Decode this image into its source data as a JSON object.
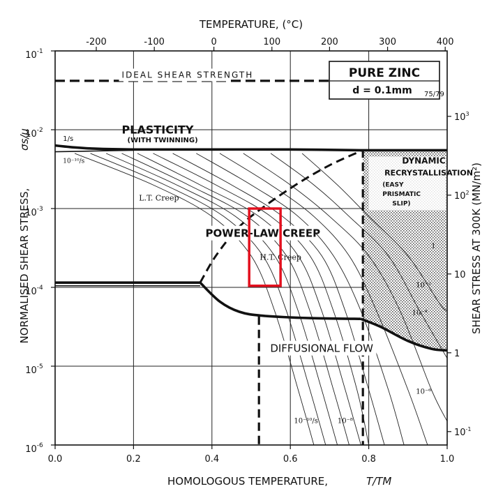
{
  "chart_data": {
    "type": "line",
    "title": "PURE ZINC",
    "subtitle": "d = 0.1mm",
    "subtitle_ref": "75/79",
    "xlabel": "HOMOLOGOUS TEMPERATURE,",
    "xlabel_symbol": "T/TM",
    "ylabel": "NORMALISED SHEAR STRESS,",
    "ylabel_symbol": "σs/μ",
    "top_axis_label": "TEMPERATURE, (°C)",
    "right_axis_label": "SHEAR STRESS AT 300K (MN/m²)",
    "xlim": [
      0,
      1
    ],
    "ylim_log10": [
      -6,
      -1
    ],
    "grid": true,
    "x_ticks": [
      {
        "value": 0,
        "label": "0.0"
      },
      {
        "value": 0.2,
        "label": "0.2"
      },
      {
        "value": 0.4,
        "label": "0.4"
      },
      {
        "value": 0.6,
        "label": "0.6"
      },
      {
        "value": 0.8,
        "label": "0.8"
      },
      {
        "value": 1.0,
        "label": "1.0"
      }
    ],
    "y_ticks": [
      {
        "value": -1,
        "base": "10",
        "exp": "-1"
      },
      {
        "value": -2,
        "base": "10",
        "exp": "-2"
      },
      {
        "value": -3,
        "base": "10",
        "exp": "-3"
      },
      {
        "value": -4,
        "base": "10",
        "exp": "-4"
      },
      {
        "value": -5,
        "base": "10",
        "exp": "-5"
      },
      {
        "value": -6,
        "base": "10",
        "exp": "-6"
      }
    ],
    "top_ticks": [
      {
        "value": 0.105,
        "label": "-200"
      },
      {
        "value": 0.253,
        "label": "-100"
      },
      {
        "value": 0.405,
        "label": "0"
      },
      {
        "value": 0.553,
        "label": "100"
      },
      {
        "value": 0.7,
        "label": "200"
      },
      {
        "value": 0.848,
        "label": "300"
      },
      {
        "value": 0.995,
        "label": "400"
      }
    ],
    "right_ticks": [
      {
        "value": -1.83,
        "label": "10³",
        "base": "10",
        "exp": "3"
      },
      {
        "value": -2.83,
        "label": "10²",
        "base": "10",
        "exp": "2"
      },
      {
        "value": -3.83,
        "label": "10",
        "base": "10",
        "exp": ""
      },
      {
        "value": -4.83,
        "label": "1",
        "base": "1",
        "exp": ""
      },
      {
        "value": -5.83,
        "label": "10⁻¹",
        "base": "10",
        "exp": "-1"
      }
    ],
    "boundaries": [
      {
        "name": "ideal-shear-strength",
        "style": "dashed",
        "points": [
          [
            0,
            -1.38
          ],
          [
            0.7,
            -1.38
          ]
        ]
      },
      {
        "name": "plasticity-boundary",
        "style": "solid",
        "points": [
          [
            0,
            -2.2
          ],
          [
            0.04,
            -2.22
          ],
          [
            0.1,
            -2.24
          ],
          [
            0.2,
            -2.25
          ],
          [
            0.4,
            -2.25
          ],
          [
            0.6,
            -2.25
          ],
          [
            0.78,
            -2.26
          ],
          [
            1.0,
            -2.26
          ]
        ]
      },
      {
        "name": "plasticity-boundary-lower",
        "style": "solid",
        "points": [
          [
            0,
            -2.28
          ],
          [
            0.1,
            -2.27
          ],
          [
            0.2,
            -2.26
          ]
        ]
      },
      {
        "name": "lt-ht-creep-boundary",
        "style": "solid",
        "points": [
          [
            0,
            -3.94
          ],
          [
            0.37,
            -3.94
          ]
        ]
      },
      {
        "name": "lt-ht-creep-boundary-lower",
        "style": "solid",
        "points": [
          [
            0,
            -3.98
          ],
          [
            0.37,
            -3.98
          ]
        ]
      },
      {
        "name": "powerlaw-diffusional-boundary",
        "style": "solid",
        "points": [
          [
            0.37,
            -3.94
          ],
          [
            0.42,
            -4.18
          ],
          [
            0.47,
            -4.31
          ],
          [
            0.53,
            -4.36
          ],
          [
            0.65,
            -4.39
          ],
          [
            0.78,
            -4.4
          ]
        ]
      },
      {
        "name": "recrystallisation-powerlaw-lower",
        "style": "solid",
        "points": [
          [
            0.78,
            -4.4
          ],
          [
            0.83,
            -4.5
          ],
          [
            0.9,
            -4.68
          ],
          [
            0.96,
            -4.78
          ],
          [
            1.0,
            -4.8
          ]
        ]
      },
      {
        "name": "lt-creep-ht-creep-dashed",
        "style": "dashed",
        "points": [
          [
            0.37,
            -3.94
          ],
          [
            0.41,
            -3.6
          ],
          [
            0.47,
            -3.23
          ],
          [
            0.54,
            -2.95
          ],
          [
            0.62,
            -2.68
          ],
          [
            0.7,
            -2.45
          ],
          [
            0.78,
            -2.27
          ]
        ]
      },
      {
        "name": "recrystallisation-vertical",
        "style": "dashed",
        "points": [
          [
            0.785,
            -2.25
          ],
          [
            0.785,
            -6
          ]
        ]
      },
      {
        "name": "diffusional-vertical",
        "style": "dashed",
        "points": [
          [
            0.52,
            -4.37
          ],
          [
            0.52,
            -6
          ]
        ]
      }
    ],
    "strain_rate_contours": [
      {
        "points": [
          [
            0.05,
            -2.3
          ],
          [
            0.25,
            -2.7
          ],
          [
            0.4,
            -3.1
          ],
          [
            0.5,
            -3.6
          ],
          [
            0.56,
            -4.3
          ],
          [
            0.62,
            -5.3
          ],
          [
            0.66,
            -6
          ]
        ]
      },
      {
        "points": [
          [
            0.09,
            -2.3
          ],
          [
            0.28,
            -2.7
          ],
          [
            0.43,
            -3.1
          ],
          [
            0.53,
            -3.6
          ],
          [
            0.59,
            -4.3
          ],
          [
            0.65,
            -5.3
          ],
          [
            0.69,
            -6
          ]
        ]
      },
      {
        "points": [
          [
            0.13,
            -2.3
          ],
          [
            0.31,
            -2.7
          ],
          [
            0.46,
            -3.1
          ],
          [
            0.56,
            -3.6
          ],
          [
            0.62,
            -4.3
          ],
          [
            0.68,
            -5.3
          ],
          [
            0.72,
            -6
          ]
        ]
      },
      {
        "points": [
          [
            0.17,
            -2.3
          ],
          [
            0.34,
            -2.7
          ],
          [
            0.49,
            -3.1
          ],
          [
            0.59,
            -3.6
          ],
          [
            0.65,
            -4.3
          ],
          [
            0.71,
            -5.3
          ],
          [
            0.75,
            -6
          ]
        ]
      },
      {
        "points": [
          [
            0.21,
            -2.3
          ],
          [
            0.37,
            -2.7
          ],
          [
            0.52,
            -3.1
          ],
          [
            0.62,
            -3.6
          ],
          [
            0.68,
            -4.3
          ],
          [
            0.74,
            -5.3
          ],
          [
            0.78,
            -6
          ]
        ]
      },
      {
        "points": [
          [
            0.25,
            -2.3
          ],
          [
            0.41,
            -2.7
          ],
          [
            0.55,
            -3.1
          ],
          [
            0.65,
            -3.6
          ],
          [
            0.71,
            -4.3
          ],
          [
            0.77,
            -5.3
          ],
          [
            0.8,
            -6
          ]
        ]
      },
      {
        "points": [
          [
            0.3,
            -2.3
          ],
          [
            0.45,
            -2.7
          ],
          [
            0.58,
            -3.1
          ],
          [
            0.68,
            -3.6
          ],
          [
            0.74,
            -4.3
          ],
          [
            0.8,
            -5.3
          ],
          [
            0.84,
            -6
          ]
        ]
      },
      {
        "points": [
          [
            0.36,
            -2.3
          ],
          [
            0.5,
            -2.7
          ],
          [
            0.62,
            -3.1
          ],
          [
            0.71,
            -3.6
          ],
          [
            0.78,
            -4.3
          ],
          [
            0.85,
            -5.3
          ],
          [
            0.89,
            -6
          ]
        ]
      },
      {
        "points": [
          [
            0.42,
            -2.3
          ],
          [
            0.55,
            -2.7
          ],
          [
            0.66,
            -3.1
          ],
          [
            0.75,
            -3.6
          ],
          [
            0.82,
            -4.3
          ],
          [
            0.9,
            -5.3
          ],
          [
            0.95,
            -6
          ]
        ]
      },
      {
        "points": [
          [
            0.48,
            -2.3
          ],
          [
            0.6,
            -2.7
          ],
          [
            0.7,
            -3.1
          ],
          [
            0.8,
            -3.6
          ],
          [
            0.88,
            -4.3
          ],
          [
            0.96,
            -5.3
          ],
          [
            1.0,
            -5.7
          ]
        ]
      },
      {
        "points": [
          [
            0.55,
            -2.3
          ],
          [
            0.66,
            -2.7
          ],
          [
            0.75,
            -3.1
          ],
          [
            0.85,
            -3.6
          ],
          [
            0.93,
            -4.3
          ],
          [
            1.0,
            -4.9
          ]
        ]
      },
      {
        "points": [
          [
            0.63,
            -2.3
          ],
          [
            0.72,
            -2.7
          ],
          [
            0.8,
            -3.1
          ],
          [
            0.9,
            -3.6
          ],
          [
            0.98,
            -4.2
          ],
          [
            1.0,
            -4.3
          ]
        ]
      }
    ],
    "annotations": [
      {
        "name": "ideal-shear-label",
        "text": "IDEAL SHEAR STRENGTH",
        "x": 0.17,
        "y": -1.34
      },
      {
        "name": "plasticity-label",
        "text": "PLASTICITY",
        "x": 0.17,
        "y": -2.05
      },
      {
        "name": "twinning-label",
        "text": "(WITH TWINNING)",
        "x": 0.17,
        "y": -2.16
      },
      {
        "name": "rate-one-third-label",
        "text": "1/s",
        "x": 0.02,
        "y": -2.14
      },
      {
        "name": "rate-10-10-upper-label",
        "text": "10⁻¹⁰/s",
        "x": 0.02,
        "y": -2.42
      },
      {
        "name": "dynamic-label",
        "text": "DYNAMIC",
        "x": 0.885,
        "y": -2.43
      },
      {
        "name": "recrystallisation-label",
        "text": "RECRYSTALLISATION",
        "x": 0.84,
        "y": -2.58
      },
      {
        "name": "easy-label",
        "text": "(EASY",
        "x": 0.835,
        "y": -2.72
      },
      {
        "name": "prismatic-label",
        "text": "PRISMATIC",
        "x": 0.835,
        "y": -2.84
      },
      {
        "name": "slip-label",
        "text": "SLIP)",
        "x": 0.835,
        "y": -2.96
      },
      {
        "name": "lt-creep-label",
        "text": "L.T. Creep",
        "x": 0.265,
        "y": -2.9
      },
      {
        "name": "power-law-label",
        "text": "POWER-LAW CREEP",
        "x": 0.53,
        "y": -3.36
      },
      {
        "name": "ht-creep-label",
        "text": "H.T. Creep",
        "x": 0.575,
        "y": -3.65
      },
      {
        "name": "diffusional-label",
        "text": "DIFFUSIONAL FLOW",
        "x": 0.68,
        "y": -4.82
      },
      {
        "name": "rate-10-10-lower-label",
        "text": "10⁻¹⁰/s",
        "x": 0.64,
        "y": -5.72
      },
      {
        "name": "rate-10-8-label",
        "text": "10⁻⁸",
        "x": 0.74,
        "y": -5.72
      },
      {
        "name": "rate-1-label",
        "text": "1",
        "x": 0.965,
        "y": -3.5
      },
      {
        "name": "rate-10-2-label",
        "text": "10⁻²",
        "x": 0.94,
        "y": -4.0
      },
      {
        "name": "rate-10-4-label",
        "text": "10⁻⁴",
        "x": 0.93,
        "y": -4.35
      },
      {
        "name": "rate-10-6-label",
        "text": "10⁻⁶",
        "x": 0.94,
        "y": -5.35
      }
    ],
    "highlight_box": {
      "x": [
        0.495,
        0.575
      ],
      "y_log10": [
        -3.0,
        -3.98
      ],
      "color": "#e3101e"
    }
  }
}
